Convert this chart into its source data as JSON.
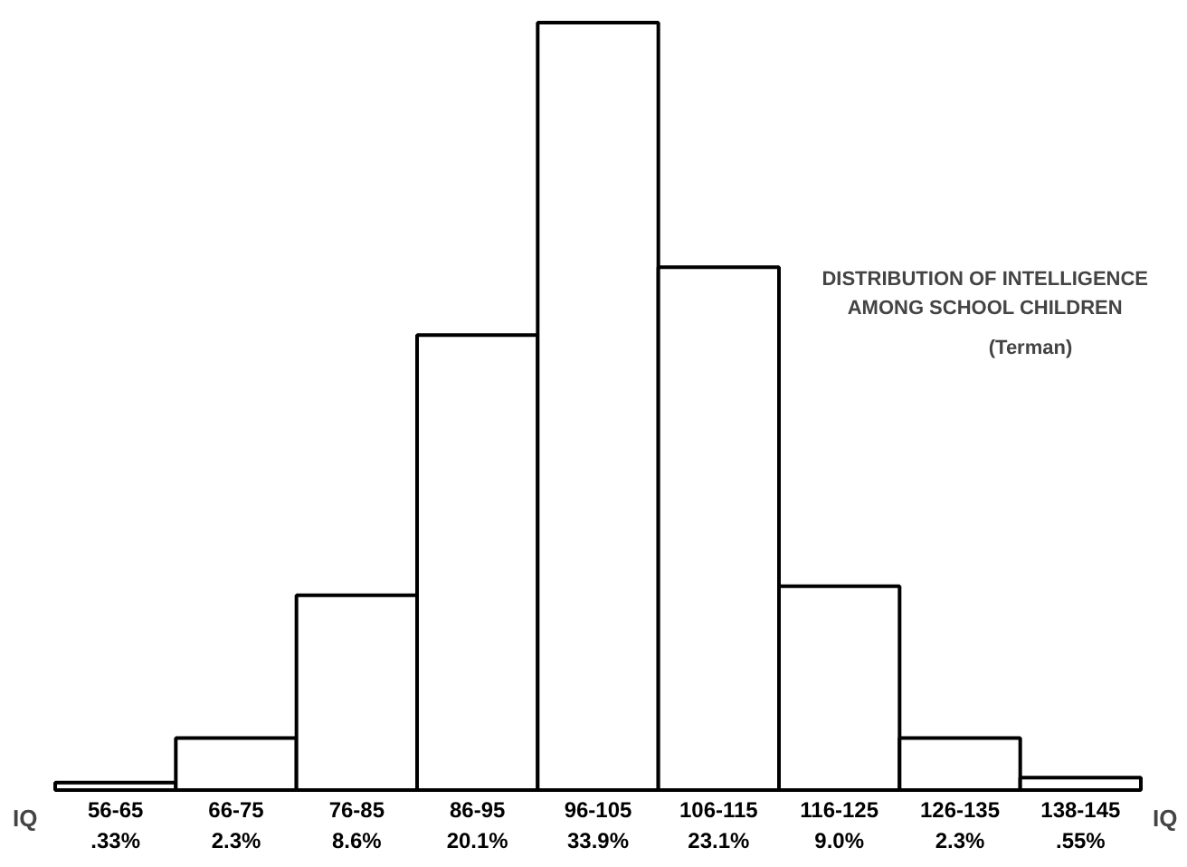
{
  "chart_data": {
    "type": "bar",
    "title": "DISTRIBUTION OF INTELLIGENCE AMONG SCHOOL CHILDREN",
    "subtitle": "(Terman)",
    "xlabel": "IQ",
    "categories": [
      "56-65",
      "66-75",
      "76-85",
      "86-95",
      "96-105",
      "106-115",
      "116-125",
      "126-135",
      "138-145"
    ],
    "values": [
      0.33,
      2.3,
      8.6,
      20.1,
      33.9,
      23.1,
      9.0,
      2.3,
      0.55
    ],
    "value_labels": [
      ".33%",
      "2.3%",
      "8.6%",
      "20.1%",
      "33.9%",
      "23.1%",
      "9.0%",
      "2.3%",
      ".55%"
    ],
    "color": "#ffffff",
    "grid": false
  }
}
